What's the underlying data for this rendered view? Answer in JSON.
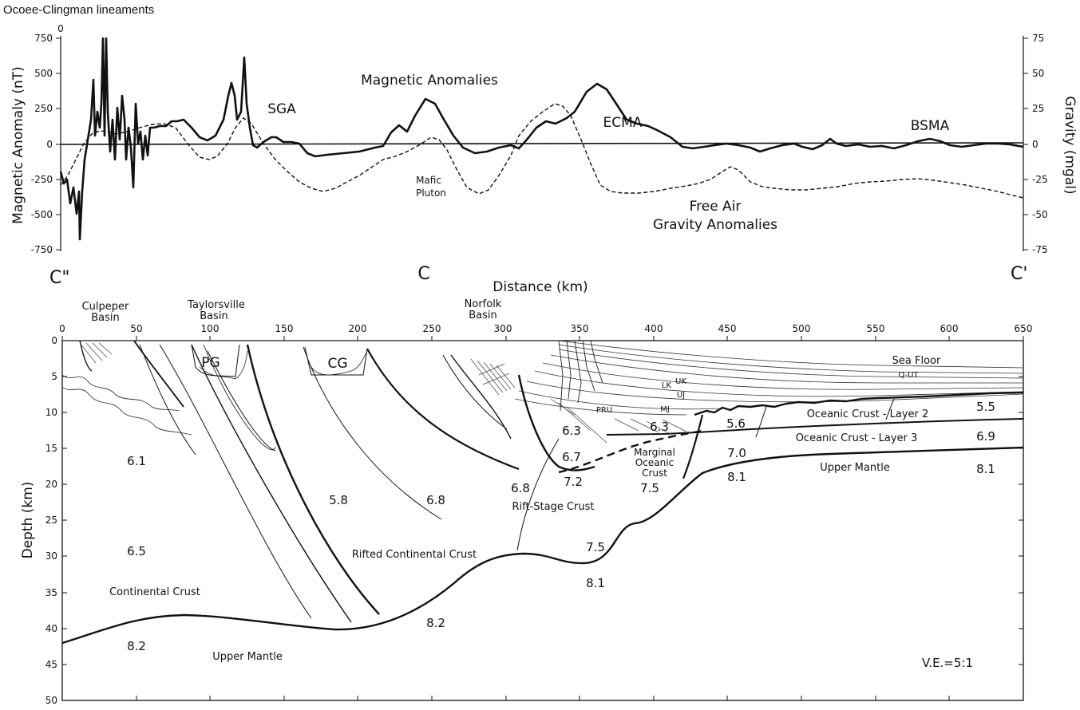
{
  "header": {
    "title": "Ocoee-Clingman lineaments",
    "corner_zero": "0"
  },
  "profile": {
    "y_left_label": "Magnetic Anomaly (nT)",
    "y_left_ticks": [
      "750",
      "500",
      "250",
      "0",
      "-250",
      "-500",
      "-750"
    ],
    "y_right_label": "Gravity (mgal)",
    "y_right_ticks": [
      "75",
      "50",
      "25",
      "0",
      "-25",
      "-50",
      "-75"
    ],
    "title_magnetic": "Magnetic Anomalies",
    "label_sga": "SGA",
    "label_ecma": "ECMA",
    "label_bsma": "BSMA",
    "label_mafic_1": "Mafic",
    "label_mafic_2": "Pluton",
    "label_gravity_1": "Free Air",
    "label_gravity_2": "Gravity Anomalies",
    "marker_left": "C\"",
    "marker_mid": "C",
    "marker_right": "C'"
  },
  "section": {
    "x_label": "Distance (km)",
    "x_ticks": [
      "0",
      "50",
      "100",
      "150",
      "200",
      "250",
      "300",
      "350",
      "400",
      "450",
      "500",
      "550",
      "600",
      "650"
    ],
    "y_label": "Depth (km)",
    "y_ticks": [
      "0",
      "5",
      "10",
      "15",
      "20",
      "25",
      "30",
      "35",
      "40",
      "45",
      "50"
    ],
    "basin_culpeper_1": "Culpeper",
    "basin_culpeper_2": "Basin",
    "basin_taylorsville_1": "Taylorsville",
    "basin_taylorsville_2": "Basin",
    "basin_norfolk_1": "Norfolk",
    "basin_norfolk_2": "Basin",
    "pg": "PG",
    "cg": "CG",
    "sea_floor": "Sea Floor",
    "q_ut": "Q-UT",
    "uk": "UK",
    "lk": "LK",
    "uj": "UJ",
    "mj": "MJ",
    "pru": "PRU",
    "oceanic_2": "Oceanic Crust - Layer 2",
    "oceanic_3": "Oceanic Crust - Layer 3",
    "marginal_1": "Marginal",
    "marginal_2": "Oceanic",
    "marginal_3": "Crust",
    "rift_stage": "Rift-Stage Crust",
    "rifted_continental": "Rifted Continental Crust",
    "continental": "Continental Crust",
    "upper_mantle_left": "Upper Mantle",
    "upper_mantle_right": "Upper Mantle",
    "ve": "V.E.=5:1",
    "v_6_1": "6.1",
    "v_6_5": "6.5",
    "v_8_2a": "8.2",
    "v_5_8": "5.8",
    "v_6_8a": "6.8",
    "v_6_8b": "6.8",
    "v_8_2b": "8.2",
    "v_6_3a": "6.3",
    "v_6_7": "6.7",
    "v_7_2": "7.2",
    "v_6_3b": "6.3",
    "v_7_5a": "7.5",
    "v_7_5b": "7.5",
    "v_8_1a": "8.1",
    "v_5_6": "5.6",
    "v_7_0": "7.0",
    "v_8_1b": "8.1",
    "v_5_5": "5.5",
    "v_6_9": "6.9",
    "v_8_1c": "8.1"
  }
}
